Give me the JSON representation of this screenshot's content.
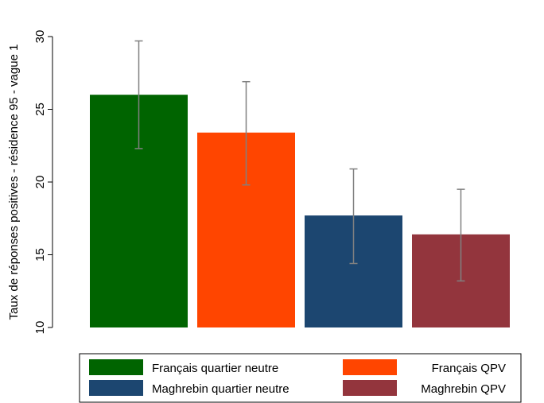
{
  "chart_data": {
    "type": "bar",
    "title": "",
    "xlabel": "",
    "ylabel": "Taux de réponses positives - résidence 95 - vague 1",
    "ylim": [
      10,
      30
    ],
    "yticks": [
      10,
      15,
      20,
      25,
      30
    ],
    "grid": false,
    "legend_position": "bottom",
    "series": [
      {
        "name": "Français quartier neutre",
        "value": 26.0,
        "ci_low": 22.3,
        "ci_high": 29.7,
        "color": "#006400"
      },
      {
        "name": "Français QPV",
        "value": 23.4,
        "ci_low": 19.8,
        "ci_high": 26.9,
        "color": "#ff4500"
      },
      {
        "name": "Maghrebin quartier neutre",
        "value": 17.7,
        "ci_low": 14.4,
        "ci_high": 20.9,
        "color": "#1c4670"
      },
      {
        "name": "Maghrebin QPV",
        "value": 16.4,
        "ci_low": 13.2,
        "ci_high": 19.5,
        "color": "#93353d"
      }
    ],
    "error_bar_color": "#808080"
  }
}
